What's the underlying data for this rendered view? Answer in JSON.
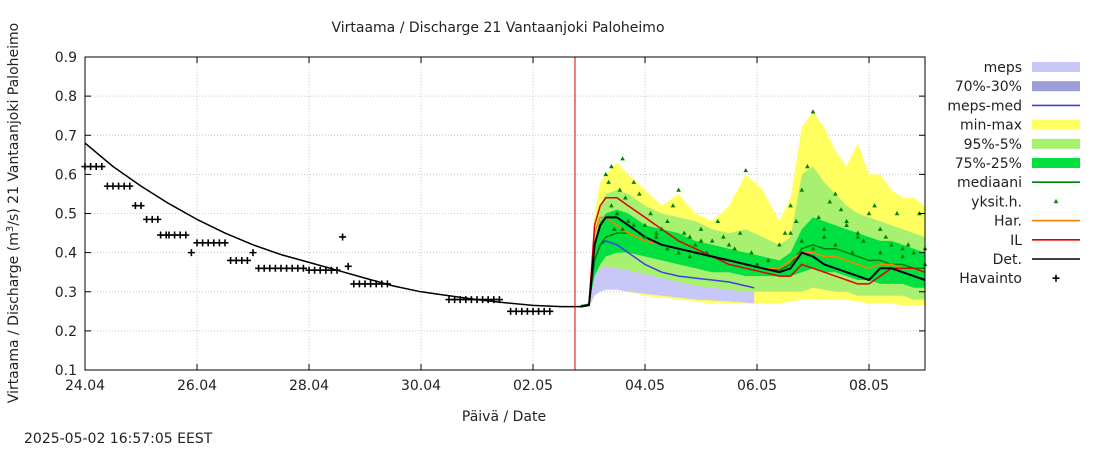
{
  "chart_data": {
    "type": "line",
    "title": "Virtaama / Discharge  21 Vantaanjoki Paloheimo",
    "xlabel": "Päivä / Date",
    "ylabel_prefix": "Virtaama / Discharge (m",
    "ylabel_sup": "3",
    "ylabel_suffix": "/s)  21 Vantaanjoki Paloheimo",
    "footer": "2025-05-02 16:57:05 EEST",
    "x_unit": "days since 24.04 00:00",
    "xlim": [
      0,
      15
    ],
    "ylim": [
      0.1,
      0.9
    ],
    "grid": true,
    "now_x": 8.75,
    "x_ticks": [
      {
        "x": 0,
        "label": "24.04"
      },
      {
        "x": 2,
        "label": "26.04"
      },
      {
        "x": 4,
        "label": "28.04"
      },
      {
        "x": 6,
        "label": "30.04"
      },
      {
        "x": 8,
        "label": "02.05"
      },
      {
        "x": 10,
        "label": "04.05"
      },
      {
        "x": 12,
        "label": "06.05"
      },
      {
        "x": 14,
        "label": "08.05"
      }
    ],
    "y_ticks": [
      {
        "y": 0.1,
        "label": "0.1"
      },
      {
        "y": 0.2,
        "label": "0.2"
      },
      {
        "y": 0.3,
        "label": "0.3"
      },
      {
        "y": 0.4,
        "label": "0.4"
      },
      {
        "y": 0.5,
        "label": "0.5"
      },
      {
        "y": 0.6,
        "label": "0.6"
      },
      {
        "y": 0.7,
        "label": "0.7"
      },
      {
        "y": 0.8,
        "label": "0.8"
      },
      {
        "y": 0.9,
        "label": "0.9"
      }
    ],
    "colors": {
      "meps": "#c8c8f8",
      "p70_30": "#9d9ddc",
      "meps_med": "#4040e0",
      "minmax": "#ffff60",
      "p95_5": "#a8f070",
      "p75_25": "#00e040",
      "mediaani": "#008000",
      "yksit": "#008000",
      "har": "#ff8000",
      "il": "#e00000",
      "det": "#000000",
      "havainto": "#000000",
      "now_line": "#e00000",
      "grid": "#c8c8c8"
    },
    "legend": [
      {
        "label": "meps",
        "style": "fill",
        "color": "#c8c8f8"
      },
      {
        "label": "70%-30%",
        "style": "fill",
        "color": "#9d9ddc"
      },
      {
        "label": "meps-med",
        "style": "line",
        "color": "#4040e0"
      },
      {
        "label": "min-max",
        "style": "fill",
        "color": "#ffff60"
      },
      {
        "label": "95%-5%",
        "style": "fill",
        "color": "#a8f070"
      },
      {
        "label": "75%-25%",
        "style": "fill",
        "color": "#00e040"
      },
      {
        "label": "mediaani",
        "style": "line",
        "color": "#008000"
      },
      {
        "label": "yksit.h.",
        "style": "triangle",
        "color": "#008000"
      },
      {
        "label": "Har.",
        "style": "line",
        "color": "#ff8000"
      },
      {
        "label": "IL",
        "style": "line",
        "color": "#e00000"
      },
      {
        "label": "Det.",
        "style": "line",
        "color": "#000000"
      },
      {
        "label": "Havainto",
        "style": "plus",
        "color": "#000000"
      }
    ],
    "series": {
      "det_hist": {
        "x": [
          0,
          0.5,
          1,
          1.5,
          2,
          2.5,
          3,
          3.5,
          4,
          4.5,
          5,
          5.5,
          6,
          6.5,
          7,
          7.5,
          8,
          8.5,
          8.85
        ],
        "y": [
          0.68,
          0.62,
          0.57,
          0.525,
          0.485,
          0.45,
          0.42,
          0.395,
          0.375,
          0.355,
          0.335,
          0.315,
          0.3,
          0.29,
          0.28,
          0.272,
          0.265,
          0.262,
          0.262
        ]
      },
      "havainto": {
        "x": [
          0,
          0.1,
          0.2,
          0.3,
          0.4,
          0.5,
          0.6,
          0.7,
          0.8,
          0.9,
          1.0,
          1.1,
          1.2,
          1.3,
          1.35,
          1.45,
          1.5,
          1.6,
          1.7,
          1.8,
          1.9,
          2.0,
          2.1,
          2.2,
          2.3,
          2.4,
          2.5,
          2.6,
          2.7,
          2.8,
          2.9,
          3.0,
          3.1,
          3.2,
          3.3,
          3.4,
          3.5,
          3.6,
          3.7,
          3.8,
          3.9,
          4.0,
          4.1,
          4.2,
          4.3,
          4.4,
          4.5,
          4.6,
          4.7,
          4.8,
          4.9,
          5.0,
          5.1,
          5.2,
          5.3,
          5.4,
          6.5,
          6.6,
          6.7,
          6.8,
          6.9,
          7.0,
          7.1,
          7.2,
          7.3,
          7.4,
          7.6,
          7.7,
          7.8,
          7.9,
          8.0,
          8.1,
          8.2,
          8.3
        ],
        "y": [
          0.62,
          0.62,
          0.62,
          0.62,
          0.57,
          0.57,
          0.57,
          0.57,
          0.57,
          0.52,
          0.52,
          0.485,
          0.485,
          0.485,
          0.445,
          0.445,
          0.445,
          0.445,
          0.445,
          0.445,
          0.4,
          0.425,
          0.425,
          0.425,
          0.425,
          0.425,
          0.425,
          0.38,
          0.38,
          0.38,
          0.38,
          0.4,
          0.36,
          0.36,
          0.36,
          0.36,
          0.36,
          0.36,
          0.36,
          0.36,
          0.36,
          0.355,
          0.355,
          0.355,
          0.355,
          0.355,
          0.355,
          0.44,
          0.365,
          0.32,
          0.32,
          0.32,
          0.32,
          0.32,
          0.32,
          0.32,
          0.28,
          0.28,
          0.28,
          0.28,
          0.28,
          0.28,
          0.28,
          0.28,
          0.28,
          0.28,
          0.25,
          0.25,
          0.25,
          0.25,
          0.25,
          0.25,
          0.25,
          0.25
        ]
      },
      "fx": [
        8.85,
        9.0,
        9.1,
        9.2,
        9.3,
        9.5,
        9.7,
        10.0,
        10.3,
        10.6,
        10.9,
        11.2,
        11.5,
        11.8,
        12.1,
        12.4,
        12.6,
        12.8,
        13.0,
        13.2,
        13.4,
        13.6,
        13.8,
        14.0,
        14.2,
        14.4,
        14.6,
        14.8,
        15.0
      ],
      "minmax_hi": [
        0.265,
        0.27,
        0.5,
        0.58,
        0.6,
        0.63,
        0.6,
        0.56,
        0.52,
        0.55,
        0.5,
        0.48,
        0.52,
        0.6,
        0.56,
        0.48,
        0.54,
        0.72,
        0.76,
        0.72,
        0.66,
        0.62,
        0.68,
        0.6,
        0.6,
        0.56,
        0.54,
        0.54,
        0.52
      ],
      "minmax_lo": [
        0.26,
        0.265,
        0.29,
        0.3,
        0.31,
        0.31,
        0.3,
        0.29,
        0.285,
        0.28,
        0.275,
        0.27,
        0.27,
        0.27,
        0.27,
        0.27,
        0.275,
        0.28,
        0.28,
        0.28,
        0.28,
        0.28,
        0.275,
        0.27,
        0.27,
        0.27,
        0.265,
        0.265,
        0.265
      ],
      "p95_hi": [
        0.265,
        0.27,
        0.45,
        0.52,
        0.55,
        0.56,
        0.55,
        0.52,
        0.5,
        0.49,
        0.48,
        0.46,
        0.45,
        0.46,
        0.44,
        0.42,
        0.44,
        0.6,
        0.62,
        0.58,
        0.55,
        0.52,
        0.5,
        0.49,
        0.48,
        0.47,
        0.46,
        0.45,
        0.44
      ],
      "p95_lo": [
        0.262,
        0.265,
        0.3,
        0.32,
        0.33,
        0.33,
        0.33,
        0.33,
        0.32,
        0.32,
        0.31,
        0.3,
        0.3,
        0.3,
        0.3,
        0.3,
        0.3,
        0.3,
        0.31,
        0.305,
        0.3,
        0.3,
        0.29,
        0.29,
        0.29,
        0.29,
        0.29,
        0.28,
        0.28
      ],
      "p75_hi": [
        0.265,
        0.27,
        0.43,
        0.48,
        0.5,
        0.51,
        0.5,
        0.47,
        0.46,
        0.45,
        0.43,
        0.42,
        0.41,
        0.4,
        0.39,
        0.38,
        0.4,
        0.46,
        0.49,
        0.48,
        0.47,
        0.46,
        0.45,
        0.44,
        0.43,
        0.43,
        0.42,
        0.41,
        0.4
      ],
      "p75_lo": [
        0.262,
        0.265,
        0.34,
        0.37,
        0.39,
        0.4,
        0.4,
        0.39,
        0.38,
        0.37,
        0.36,
        0.35,
        0.35,
        0.34,
        0.34,
        0.34,
        0.34,
        0.35,
        0.36,
        0.35,
        0.35,
        0.34,
        0.33,
        0.33,
        0.32,
        0.32,
        0.32,
        0.31,
        0.31
      ],
      "mediaani": [
        0.264,
        0.268,
        0.38,
        0.42,
        0.44,
        0.45,
        0.45,
        0.43,
        0.42,
        0.41,
        0.4,
        0.39,
        0.38,
        0.37,
        0.36,
        0.355,
        0.37,
        0.41,
        0.42,
        0.41,
        0.41,
        0.4,
        0.39,
        0.38,
        0.38,
        0.37,
        0.37,
        0.36,
        0.36
      ],
      "det": [
        0.262,
        0.266,
        0.42,
        0.47,
        0.49,
        0.49,
        0.47,
        0.44,
        0.42,
        0.41,
        0.4,
        0.39,
        0.38,
        0.37,
        0.36,
        0.35,
        0.36,
        0.4,
        0.39,
        0.37,
        0.36,
        0.35,
        0.34,
        0.33,
        0.36,
        0.36,
        0.35,
        0.34,
        0.33
      ],
      "il": [
        0.262,
        0.266,
        0.47,
        0.52,
        0.54,
        0.54,
        0.52,
        0.49,
        0.46,
        0.43,
        0.41,
        0.39,
        0.37,
        0.36,
        0.35,
        0.34,
        0.34,
        0.37,
        0.36,
        0.35,
        0.34,
        0.33,
        0.32,
        0.32,
        0.34,
        0.36,
        0.36,
        0.36,
        0.35
      ],
      "har": [
        0.262,
        0.266,
        0.45,
        0.49,
        0.49,
        0.47,
        0.45,
        0.43,
        0.42,
        0.41,
        0.4,
        0.39,
        0.38,
        0.37,
        0.36,
        0.36,
        0.38,
        0.4,
        0.4,
        0.39,
        0.39,
        0.38,
        0.37,
        0.36,
        0.37,
        0.37,
        0.36,
        0.36,
        0.35
      ],
      "mx": [
        8.85,
        9.0,
        9.1,
        9.2,
        9.3,
        9.5,
        9.7,
        10.0,
        10.3,
        10.6,
        10.9,
        11.2,
        11.5,
        11.8,
        11.95
      ],
      "meps_hi": [
        0.262,
        0.268,
        0.34,
        0.36,
        0.365,
        0.36,
        0.355,
        0.345,
        0.335,
        0.325,
        0.315,
        0.31,
        0.305,
        0.3,
        0.3
      ],
      "meps_lo": [
        0.26,
        0.262,
        0.29,
        0.3,
        0.305,
        0.305,
        0.3,
        0.295,
        0.29,
        0.285,
        0.28,
        0.278,
        0.275,
        0.272,
        0.27
      ],
      "meps_med": [
        0.262,
        0.266,
        0.38,
        0.42,
        0.43,
        0.42,
        0.4,
        0.37,
        0.35,
        0.34,
        0.335,
        0.33,
        0.325,
        0.315,
        0.31
      ],
      "yksit": {
        "x": [
          9.3,
          9.35,
          9.4,
          9.45,
          9.5,
          9.55,
          9.6,
          9.65,
          9.7,
          9.8,
          9.9,
          10.0,
          10.1,
          10.2,
          10.3,
          10.4,
          10.5,
          10.6,
          10.7,
          10.8,
          10.9,
          11.0,
          11.1,
          11.2,
          11.3,
          11.4,
          11.5,
          11.6,
          11.7,
          11.8,
          11.9,
          12.0,
          12.2,
          12.4,
          12.5,
          12.6,
          12.7,
          12.8,
          12.9,
          13.0,
          13.1,
          13.2,
          13.3,
          13.4,
          13.5,
          13.6,
          13.7,
          13.8,
          13.9,
          14.0,
          14.1,
          14.2,
          14.3,
          14.4,
          14.5,
          14.6,
          14.7,
          14.8,
          14.9,
          15.0,
          9.4,
          9.6,
          9.8,
          10.0,
          10.2,
          10.4,
          10.6,
          10.8,
          11.0,
          12.6,
          12.8,
          13.0,
          13.2,
          13.4,
          13.6,
          13.8,
          14.2,
          14.6,
          15.0
        ],
        "y": [
          0.6,
          0.58,
          0.52,
          0.46,
          0.5,
          0.56,
          0.64,
          0.54,
          0.48,
          0.58,
          0.55,
          0.47,
          0.5,
          0.44,
          0.46,
          0.48,
          0.52,
          0.56,
          0.45,
          0.44,
          0.42,
          0.46,
          0.4,
          0.43,
          0.48,
          0.44,
          0.42,
          0.41,
          0.45,
          0.61,
          0.4,
          0.37,
          0.38,
          0.42,
          0.45,
          0.52,
          0.48,
          0.56,
          0.62,
          0.76,
          0.49,
          0.46,
          0.53,
          0.42,
          0.51,
          0.47,
          0.4,
          0.45,
          0.43,
          0.5,
          0.52,
          0.46,
          0.44,
          0.42,
          0.5,
          0.41,
          0.42,
          0.4,
          0.5,
          0.41,
          0.62,
          0.46,
          0.47,
          0.44,
          0.45,
          0.41,
          0.4,
          0.39,
          0.43,
          0.45,
          0.43,
          0.41,
          0.44,
          0.55,
          0.48,
          0.44,
          0.4,
          0.39,
          0.37
        ]
      }
    }
  }
}
